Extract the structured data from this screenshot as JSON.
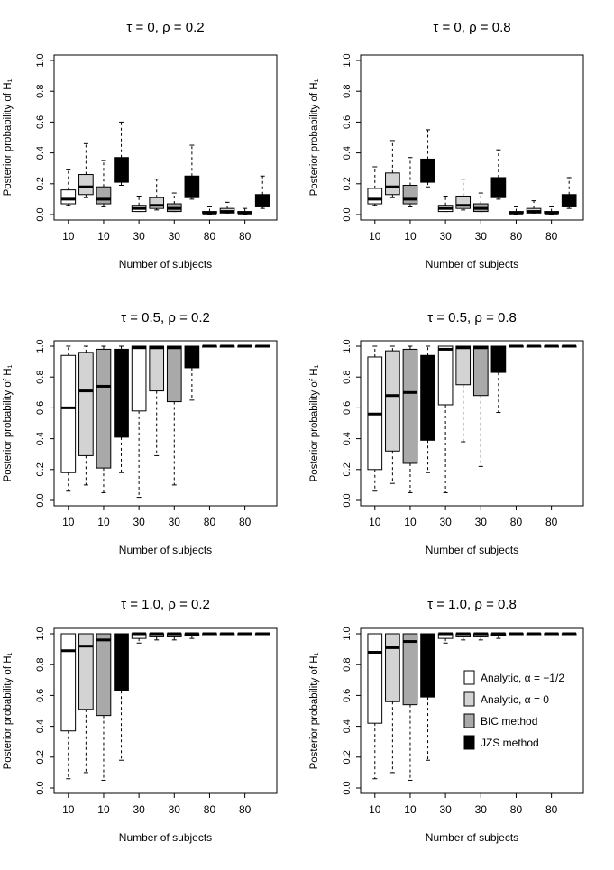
{
  "chart_data": [
    {
      "type": "boxplot",
      "title": "τ = 0, ρ = 0.2",
      "xlabel": "Number of subjects",
      "ylabel": "Posterior probability of H₁",
      "ylim": [
        0,
        1
      ],
      "yticks": [
        "0.0",
        "0.2",
        "0.4",
        "0.6",
        "0.8",
        "1.0"
      ],
      "xtick_labels": [
        "10",
        "10",
        "30",
        "30",
        "80",
        "80"
      ],
      "boxes": [
        {
          "method": "Analytic, α = −1/2",
          "color": "#ffffff",
          "whisker_low": 0.06,
          "q1": 0.07,
          "median": 0.1,
          "q3": 0.16,
          "whisker_high": 0.29
        },
        {
          "method": "Analytic, α = 0",
          "color": "#d3d3d3",
          "whisker_low": 0.11,
          "q1": 0.13,
          "median": 0.18,
          "q3": 0.26,
          "whisker_high": 0.46
        },
        {
          "method": "BIC method",
          "color": "#a9a9a9",
          "whisker_low": 0.05,
          "q1": 0.07,
          "median": 0.1,
          "q3": 0.18,
          "whisker_high": 0.35
        },
        {
          "method": "JZS method",
          "color": "#000000",
          "whisker_low": 0.19,
          "q1": 0.21,
          "median": 0.29,
          "q3": 0.37,
          "whisker_high": 0.6
        },
        {
          "method": "Analytic, α = −1/2",
          "color": "#ffffff",
          "whisker_low": 0.02,
          "q1": 0.02,
          "median": 0.04,
          "q3": 0.06,
          "whisker_high": 0.12
        },
        {
          "method": "Analytic, α = 0",
          "color": "#d3d3d3",
          "whisker_low": 0.03,
          "q1": 0.04,
          "median": 0.06,
          "q3": 0.11,
          "whisker_high": 0.23
        },
        {
          "method": "BIC method",
          "color": "#a9a9a9",
          "whisker_low": 0.02,
          "q1": 0.02,
          "median": 0.04,
          "q3": 0.07,
          "whisker_high": 0.14
        },
        {
          "method": "JZS method",
          "color": "#000000",
          "whisker_low": 0.1,
          "q1": 0.11,
          "median": 0.17,
          "q3": 0.25,
          "whisker_high": 0.45
        },
        {
          "method": "Analytic, α = −1/2",
          "color": "#ffffff",
          "whisker_low": 0.0,
          "q1": 0.01,
          "median": 0.01,
          "q3": 0.02,
          "whisker_high": 0.05
        },
        {
          "method": "Analytic, α = 0",
          "color": "#d3d3d3",
          "whisker_low": 0.01,
          "q1": 0.01,
          "median": 0.02,
          "q3": 0.04,
          "whisker_high": 0.08
        },
        {
          "method": "BIC method",
          "color": "#a9a9a9",
          "whisker_low": 0.0,
          "q1": 0.01,
          "median": 0.01,
          "q3": 0.02,
          "whisker_high": 0.04
        },
        {
          "method": "JZS method",
          "color": "#000000",
          "whisker_low": 0.04,
          "q1": 0.05,
          "median": 0.08,
          "q3": 0.13,
          "whisker_high": 0.25
        }
      ]
    },
    {
      "type": "boxplot",
      "title": "τ = 0, ρ = 0.8",
      "xlabel": "Number of subjects",
      "ylabel": "Posterior probability of H₁",
      "ylim": [
        0,
        1
      ],
      "yticks": [
        "0.0",
        "0.2",
        "0.4",
        "0.6",
        "0.8",
        "1.0"
      ],
      "xtick_labels": [
        "10",
        "10",
        "30",
        "30",
        "80",
        "80"
      ],
      "boxes": [
        {
          "method": "Analytic, α = −1/2",
          "color": "#ffffff",
          "whisker_low": 0.06,
          "q1": 0.07,
          "median": 0.1,
          "q3": 0.17,
          "whisker_high": 0.31
        },
        {
          "method": "Analytic, α = 0",
          "color": "#d3d3d3",
          "whisker_low": 0.11,
          "q1": 0.13,
          "median": 0.18,
          "q3": 0.27,
          "whisker_high": 0.48
        },
        {
          "method": "BIC method",
          "color": "#a9a9a9",
          "whisker_low": 0.05,
          "q1": 0.07,
          "median": 0.1,
          "q3": 0.19,
          "whisker_high": 0.37
        },
        {
          "method": "JZS method",
          "color": "#000000",
          "whisker_low": 0.18,
          "q1": 0.21,
          "median": 0.28,
          "q3": 0.36,
          "whisker_high": 0.55
        },
        {
          "method": "Analytic, α = −1/2",
          "color": "#ffffff",
          "whisker_low": 0.02,
          "q1": 0.02,
          "median": 0.04,
          "q3": 0.06,
          "whisker_high": 0.12
        },
        {
          "method": "Analytic, α = 0",
          "color": "#d3d3d3",
          "whisker_low": 0.03,
          "q1": 0.04,
          "median": 0.06,
          "q3": 0.12,
          "whisker_high": 0.23
        },
        {
          "method": "BIC method",
          "color": "#a9a9a9",
          "whisker_low": 0.02,
          "q1": 0.02,
          "median": 0.04,
          "q3": 0.07,
          "whisker_high": 0.14
        },
        {
          "method": "JZS method",
          "color": "#000000",
          "whisker_low": 0.1,
          "q1": 0.11,
          "median": 0.17,
          "q3": 0.24,
          "whisker_high": 0.42
        },
        {
          "method": "Analytic, α = −1/2",
          "color": "#ffffff",
          "whisker_low": 0.0,
          "q1": 0.01,
          "median": 0.01,
          "q3": 0.02,
          "whisker_high": 0.05
        },
        {
          "method": "Analytic, α = 0",
          "color": "#d3d3d3",
          "whisker_low": 0.01,
          "q1": 0.01,
          "median": 0.02,
          "q3": 0.04,
          "whisker_high": 0.09
        },
        {
          "method": "BIC method",
          "color": "#a9a9a9",
          "whisker_low": 0.0,
          "q1": 0.01,
          "median": 0.01,
          "q3": 0.02,
          "whisker_high": 0.05
        },
        {
          "method": "JZS method",
          "color": "#000000",
          "whisker_low": 0.04,
          "q1": 0.05,
          "median": 0.08,
          "q3": 0.13,
          "whisker_high": 0.24
        }
      ]
    },
    {
      "type": "boxplot",
      "title": "τ = 0.5, ρ = 0.2",
      "xlabel": "Number of subjects",
      "ylabel": "Posterior probability of H₁",
      "ylim": [
        0,
        1
      ],
      "yticks": [
        "0.0",
        "0.2",
        "0.4",
        "0.6",
        "0.8",
        "1.0"
      ],
      "xtick_labels": [
        "10",
        "10",
        "30",
        "30",
        "80",
        "80"
      ],
      "boxes": [
        {
          "method": "Analytic, α = −1/2",
          "color": "#ffffff",
          "whisker_low": 0.06,
          "q1": 0.18,
          "median": 0.6,
          "q3": 0.94,
          "whisker_high": 1.0
        },
        {
          "method": "Analytic, α = 0",
          "color": "#d3d3d3",
          "whisker_low": 0.1,
          "q1": 0.29,
          "median": 0.71,
          "q3": 0.96,
          "whisker_high": 1.0
        },
        {
          "method": "BIC method",
          "color": "#a9a9a9",
          "whisker_low": 0.05,
          "q1": 0.21,
          "median": 0.74,
          "q3": 0.98,
          "whisker_high": 1.0
        },
        {
          "method": "JZS method",
          "color": "#000000",
          "whisker_low": 0.18,
          "q1": 0.41,
          "median": 0.69,
          "q3": 0.98,
          "whisker_high": 1.0
        },
        {
          "method": "Analytic, α = −1/2",
          "color": "#ffffff",
          "whisker_low": 0.02,
          "q1": 0.58,
          "median": 0.99,
          "q3": 1.0,
          "whisker_high": 1.0
        },
        {
          "method": "Analytic, α = 0",
          "color": "#d3d3d3",
          "whisker_low": 0.29,
          "q1": 0.71,
          "median": 0.99,
          "q3": 1.0,
          "whisker_high": 1.0
        },
        {
          "method": "BIC method",
          "color": "#a9a9a9",
          "whisker_low": 0.1,
          "q1": 0.64,
          "median": 0.99,
          "q3": 1.0,
          "whisker_high": 1.0
        },
        {
          "method": "JZS method",
          "color": "#000000",
          "whisker_low": 0.65,
          "q1": 0.86,
          "median": 0.99,
          "q3": 1.0,
          "whisker_high": 1.0
        },
        {
          "method": "Analytic, α = −1/2",
          "color": "#ffffff",
          "whisker_low": 0.995,
          "q1": 0.998,
          "median": 1.0,
          "q3": 1.0,
          "whisker_high": 1.0
        },
        {
          "method": "Analytic, α = 0",
          "color": "#d3d3d3",
          "whisker_low": 0.995,
          "q1": 0.998,
          "median": 1.0,
          "q3": 1.0,
          "whisker_high": 1.0
        },
        {
          "method": "BIC method",
          "color": "#a9a9a9",
          "whisker_low": 0.995,
          "q1": 0.998,
          "median": 1.0,
          "q3": 1.0,
          "whisker_high": 1.0
        },
        {
          "method": "JZS method",
          "color": "#000000",
          "whisker_low": 0.995,
          "q1": 0.998,
          "median": 1.0,
          "q3": 1.0,
          "whisker_high": 1.0
        }
      ]
    },
    {
      "type": "boxplot",
      "title": "τ = 0.5, ρ = 0.8",
      "xlabel": "Number of subjects",
      "ylabel": "Posterior probability of H₁",
      "ylim": [
        0,
        1
      ],
      "yticks": [
        "0.0",
        "0.2",
        "0.4",
        "0.6",
        "0.8",
        "1.0"
      ],
      "xtick_labels": [
        "10",
        "10",
        "30",
        "30",
        "80",
        "80"
      ],
      "boxes": [
        {
          "method": "Analytic, α = −1/2",
          "color": "#ffffff",
          "whisker_low": 0.06,
          "q1": 0.2,
          "median": 0.56,
          "q3": 0.93,
          "whisker_high": 1.0
        },
        {
          "method": "Analytic, α = 0",
          "color": "#d3d3d3",
          "whisker_low": 0.11,
          "q1": 0.32,
          "median": 0.68,
          "q3": 0.97,
          "whisker_high": 1.0
        },
        {
          "method": "BIC method",
          "color": "#a9a9a9",
          "whisker_low": 0.05,
          "q1": 0.24,
          "median": 0.7,
          "q3": 0.98,
          "whisker_high": 1.0
        },
        {
          "method": "JZS method",
          "color": "#000000",
          "whisker_low": 0.18,
          "q1": 0.39,
          "median": 0.65,
          "q3": 0.94,
          "whisker_high": 1.0
        },
        {
          "method": "Analytic, α = −1/2",
          "color": "#ffffff",
          "whisker_low": 0.05,
          "q1": 0.62,
          "median": 0.98,
          "q3": 1.0,
          "whisker_high": 1.0
        },
        {
          "method": "Analytic, α = 0",
          "color": "#d3d3d3",
          "whisker_low": 0.38,
          "q1": 0.75,
          "median": 0.99,
          "q3": 1.0,
          "whisker_high": 1.0
        },
        {
          "method": "BIC method",
          "color": "#a9a9a9",
          "whisker_low": 0.22,
          "q1": 0.68,
          "median": 0.99,
          "q3": 1.0,
          "whisker_high": 1.0
        },
        {
          "method": "JZS method",
          "color": "#000000",
          "whisker_low": 0.57,
          "q1": 0.83,
          "median": 0.99,
          "q3": 1.0,
          "whisker_high": 1.0
        },
        {
          "method": "Analytic, α = −1/2",
          "color": "#ffffff",
          "whisker_low": 0.995,
          "q1": 0.998,
          "median": 1.0,
          "q3": 1.0,
          "whisker_high": 1.0
        },
        {
          "method": "Analytic, α = 0",
          "color": "#d3d3d3",
          "whisker_low": 0.995,
          "q1": 0.998,
          "median": 1.0,
          "q3": 1.0,
          "whisker_high": 1.0
        },
        {
          "method": "BIC method",
          "color": "#a9a9a9",
          "whisker_low": 0.995,
          "q1": 0.998,
          "median": 1.0,
          "q3": 1.0,
          "whisker_high": 1.0
        },
        {
          "method": "JZS method",
          "color": "#000000",
          "whisker_low": 0.995,
          "q1": 0.998,
          "median": 1.0,
          "q3": 1.0,
          "whisker_high": 1.0
        }
      ]
    },
    {
      "type": "boxplot",
      "title": "τ = 1.0, ρ = 0.2",
      "xlabel": "Number of subjects",
      "ylabel": "Posterior probability of H₁",
      "ylim": [
        0,
        1
      ],
      "yticks": [
        "0.0",
        "0.2",
        "0.4",
        "0.6",
        "0.8",
        "1.0"
      ],
      "xtick_labels": [
        "10",
        "10",
        "30",
        "30",
        "80",
        "80"
      ],
      "boxes": [
        {
          "method": "Analytic, α = −1/2",
          "color": "#ffffff",
          "whisker_low": 0.06,
          "q1": 0.37,
          "median": 0.89,
          "q3": 1.0,
          "whisker_high": 1.0
        },
        {
          "method": "Analytic, α = 0",
          "color": "#d3d3d3",
          "whisker_low": 0.1,
          "q1": 0.51,
          "median": 0.92,
          "q3": 1.0,
          "whisker_high": 1.0
        },
        {
          "method": "BIC method",
          "color": "#a9a9a9",
          "whisker_low": 0.05,
          "q1": 0.47,
          "median": 0.96,
          "q3": 1.0,
          "whisker_high": 1.0
        },
        {
          "method": "JZS method",
          "color": "#000000",
          "whisker_low": 0.18,
          "q1": 0.63,
          "median": 0.9,
          "q3": 1.0,
          "whisker_high": 1.0
        },
        {
          "method": "Analytic, α = −1/2",
          "color": "#ffffff",
          "whisker_low": 0.94,
          "q1": 0.97,
          "median": 1.0,
          "q3": 1.0,
          "whisker_high": 1.0
        },
        {
          "method": "Analytic, α = 0",
          "color": "#d3d3d3",
          "whisker_low": 0.96,
          "q1": 0.98,
          "median": 1.0,
          "q3": 1.0,
          "whisker_high": 1.0
        },
        {
          "method": "BIC method",
          "color": "#a9a9a9",
          "whisker_low": 0.96,
          "q1": 0.98,
          "median": 1.0,
          "q3": 1.0,
          "whisker_high": 1.0
        },
        {
          "method": "JZS method",
          "color": "#000000",
          "whisker_low": 0.97,
          "q1": 0.99,
          "median": 1.0,
          "q3": 1.0,
          "whisker_high": 1.0
        },
        {
          "method": "Analytic, α = −1/2",
          "color": "#ffffff",
          "whisker_low": 0.998,
          "q1": 0.999,
          "median": 1.0,
          "q3": 1.0,
          "whisker_high": 1.0
        },
        {
          "method": "Analytic, α = 0",
          "color": "#d3d3d3",
          "whisker_low": 0.998,
          "q1": 0.999,
          "median": 1.0,
          "q3": 1.0,
          "whisker_high": 1.0
        },
        {
          "method": "BIC method",
          "color": "#a9a9a9",
          "whisker_low": 0.998,
          "q1": 0.999,
          "median": 1.0,
          "q3": 1.0,
          "whisker_high": 1.0
        },
        {
          "method": "JZS method",
          "color": "#000000",
          "whisker_low": 0.998,
          "q1": 0.999,
          "median": 1.0,
          "q3": 1.0,
          "whisker_high": 1.0
        }
      ]
    },
    {
      "type": "boxplot",
      "title": "τ = 1.0, ρ = 0.8",
      "xlabel": "Number of subjects",
      "ylabel": "Posterior probability of H₁",
      "ylim": [
        0,
        1
      ],
      "yticks": [
        "0.0",
        "0.2",
        "0.4",
        "0.6",
        "0.8",
        "1.0"
      ],
      "xtick_labels": [
        "10",
        "10",
        "30",
        "30",
        "80",
        "80"
      ],
      "legend": {
        "position": "center-right",
        "entries": [
          {
            "label": "Analytic, α = −1/2",
            "color": "#ffffff"
          },
          {
            "label": "Analytic, α = 0",
            "color": "#d3d3d3"
          },
          {
            "label": "BIC method",
            "color": "#a9a9a9"
          },
          {
            "label": "JZS method",
            "color": "#000000"
          }
        ]
      },
      "boxes": [
        {
          "method": "Analytic, α = −1/2",
          "color": "#ffffff",
          "whisker_low": 0.06,
          "q1": 0.42,
          "median": 0.88,
          "q3": 1.0,
          "whisker_high": 1.0
        },
        {
          "method": "Analytic, α = 0",
          "color": "#d3d3d3",
          "whisker_low": 0.1,
          "q1": 0.56,
          "median": 0.91,
          "q3": 1.0,
          "whisker_high": 1.0
        },
        {
          "method": "BIC method",
          "color": "#a9a9a9",
          "whisker_low": 0.05,
          "q1": 0.54,
          "median": 0.95,
          "q3": 1.0,
          "whisker_high": 1.0
        },
        {
          "method": "JZS method",
          "color": "#000000",
          "whisker_low": 0.18,
          "q1": 0.59,
          "median": 0.88,
          "q3": 1.0,
          "whisker_high": 1.0
        },
        {
          "method": "Analytic, α = −1/2",
          "color": "#ffffff",
          "whisker_low": 0.94,
          "q1": 0.97,
          "median": 1.0,
          "q3": 1.0,
          "whisker_high": 1.0
        },
        {
          "method": "Analytic, α = 0",
          "color": "#d3d3d3",
          "whisker_low": 0.96,
          "q1": 0.98,
          "median": 1.0,
          "q3": 1.0,
          "whisker_high": 1.0
        },
        {
          "method": "BIC method",
          "color": "#a9a9a9",
          "whisker_low": 0.96,
          "q1": 0.98,
          "median": 1.0,
          "q3": 1.0,
          "whisker_high": 1.0
        },
        {
          "method": "JZS method",
          "color": "#000000",
          "whisker_low": 0.97,
          "q1": 0.99,
          "median": 1.0,
          "q3": 1.0,
          "whisker_high": 1.0
        },
        {
          "method": "Analytic, α = −1/2",
          "color": "#ffffff",
          "whisker_low": 0.998,
          "q1": 0.999,
          "median": 1.0,
          "q3": 1.0,
          "whisker_high": 1.0
        },
        {
          "method": "Analytic, α = 0",
          "color": "#d3d3d3",
          "whisker_low": 0.998,
          "q1": 0.999,
          "median": 1.0,
          "q3": 1.0,
          "whisker_high": 1.0
        },
        {
          "method": "BIC method",
          "color": "#a9a9a9",
          "whisker_low": 0.998,
          "q1": 0.999,
          "median": 1.0,
          "q3": 1.0,
          "whisker_high": 1.0
        },
        {
          "method": "JZS method",
          "color": "#000000",
          "whisker_low": 0.998,
          "q1": 0.999,
          "median": 1.0,
          "q3": 1.0,
          "whisker_high": 1.0
        }
      ]
    }
  ]
}
